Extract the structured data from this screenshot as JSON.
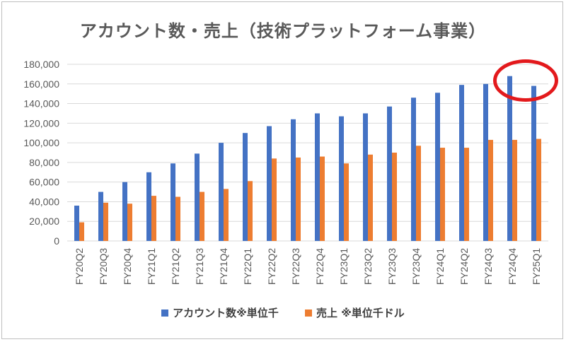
{
  "chart_data": {
    "type": "bar",
    "title": "アカウント数・売上（技術プラットフォーム事業）",
    "categories": [
      "FY20Q2",
      "FY20Q3",
      "FY20Q4",
      "FY21Q1",
      "FY21Q2",
      "FY21Q3",
      "FY21Q4",
      "FY22Q1",
      "FY22Q2",
      "FY22Q3",
      "FY22Q4",
      "FY23Q1",
      "FY23Q2",
      "FY23Q3",
      "FY23Q4",
      "FY24Q1",
      "FY24Q2",
      "FY24Q3",
      "FY24Q4",
      "FY25Q1"
    ],
    "series": [
      {
        "name": "アカウント数※単位千",
        "color": "#4472c4",
        "values": [
          36000,
          50000,
          60000,
          70000,
          79000,
          89000,
          100000,
          110000,
          117000,
          124000,
          130000,
          127000,
          130000,
          137000,
          146000,
          151000,
          159000,
          160000,
          168000,
          158000
        ]
      },
      {
        "name": "売上 ※単位千ドル",
        "color": "#ed7d31",
        "values": [
          19000,
          39000,
          38000,
          46000,
          45000,
          50000,
          53000,
          61000,
          84000,
          85000,
          86000,
          79000,
          88000,
          90000,
          97000,
          95000,
          95000,
          103000,
          103000,
          104000
        ]
      }
    ],
    "ylim": [
      0,
      180000
    ],
    "yticks": [
      "0",
      "20,000",
      "40,000",
      "60,000",
      "80,000",
      "100,000",
      "120,000",
      "140,000",
      "160,000",
      "180,000"
    ],
    "grid": true,
    "legend": "bottom"
  },
  "annotation": {
    "shape": "ellipse",
    "color": "#e3191c",
    "target": "FY24Q4–FY25Q1"
  }
}
